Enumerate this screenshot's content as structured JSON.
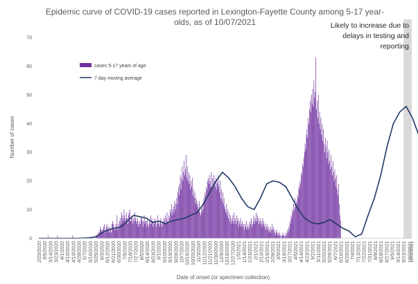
{
  "chart_data": {
    "type": "bar",
    "title_lines": [
      "Epidemic curve of COVID-19 cases reported in Lexington-Fayette County among 5-17 year-",
      "olds, as of 10/07/2021"
    ],
    "xlabel": "Date of onset (or specimen collection)",
    "ylabel": "Number of cases",
    "ylim": [
      0,
      70
    ],
    "yticks": [
      0,
      10,
      20,
      30,
      40,
      50,
      60,
      70
    ],
    "grid": false,
    "legend_position": "upper-left",
    "x_start": "2020-02-25",
    "x_end": "2021-10-05",
    "xtick_labels": [
      "2/25/2020",
      "3/5/2020",
      "3/14/2020",
      "3/23/2020",
      "4/1/2020",
      "4/10/2020",
      "4/19/2020",
      "4/28/2020",
      "5/7/2020",
      "5/16/2020",
      "5/25/2020",
      "6/3/2020",
      "6/12/2020",
      "6/21/2020",
      "6/30/2020",
      "7/9/2020",
      "7/18/2020",
      "7/27/2020",
      "8/5/2020",
      "8/14/2020",
      "8/23/2020",
      "9/1/2020",
      "9/10/2020",
      "9/19/2020",
      "9/28/2020",
      "10/7/2020",
      "10/16/2020",
      "10/25/2020",
      "11/3/2020",
      "11/12/2020",
      "11/21/2020",
      "11/30/2020",
      "12/9/2020",
      "12/18/2020",
      "12/27/2020",
      "1/5/2021",
      "1/14/2021",
      "1/23/2021",
      "2/1/2021",
      "2/10/2021",
      "2/19/2021",
      "2/28/2021",
      "3/9/2021",
      "3/18/2021",
      "3/27/2021",
      "4/5/2021",
      "4/14/2021",
      "4/23/2021",
      "5/2/2021",
      "5/11/2021",
      "5/20/2021",
      "5/29/2021",
      "6/7/2021",
      "6/16/2021",
      "6/25/2021",
      "7/4/2021",
      "7/13/2021",
      "7/22/2021",
      "7/31/2021",
      "8/9/2021",
      "8/18/2021",
      "8/27/2021",
      "9/5/2021",
      "9/14/2021",
      "9/23/2021",
      "10/2/2021",
      "10/5/2021"
    ],
    "shaded_region": {
      "start": "2021-09-23",
      "end": "2021-10-05",
      "color": "#d9d9d9"
    },
    "annotation": [
      "Likely to increase due to",
      "delays in testing and",
      "reporting"
    ],
    "series": [
      {
        "name": "cases 5-17 years of age",
        "kind": "bar",
        "color": "#7030a0",
        "values": [
          0,
          0,
          0,
          0,
          0,
          0,
          0,
          0,
          0,
          0,
          0,
          0,
          0,
          0,
          1,
          0,
          0,
          0,
          0,
          0,
          0,
          0,
          0,
          0,
          0,
          0,
          0,
          0,
          0,
          1,
          0,
          0,
          0,
          0,
          0,
          0,
          0,
          0,
          0,
          0,
          0,
          0,
          0,
          0,
          0,
          0,
          0,
          0,
          0,
          0,
          0,
          0,
          0,
          1,
          0,
          0,
          0,
          0,
          0,
          0,
          0,
          0,
          0,
          0,
          0,
          0,
          0,
          0,
          0,
          0,
          0,
          0,
          0,
          0,
          0,
          0,
          0,
          0,
          0,
          0,
          0,
          0,
          0,
          0,
          0,
          0,
          0,
          0,
          0,
          0,
          1,
          1,
          1,
          2,
          1,
          2,
          3,
          4,
          3,
          2,
          3,
          3,
          4,
          5,
          2,
          3,
          4,
          5,
          3,
          4,
          3,
          2,
          4,
          3,
          2,
          5,
          6,
          5,
          4,
          3,
          3,
          5,
          4,
          8,
          3,
          5,
          4,
          6,
          7,
          5,
          9,
          8,
          6,
          7,
          10,
          8,
          6,
          7,
          9,
          7,
          5,
          8,
          9,
          10,
          6,
          6,
          8,
          7,
          5,
          7,
          6,
          9,
          7,
          6,
          5,
          7,
          6,
          4,
          5,
          6,
          5,
          7,
          7,
          6,
          4,
          6,
          8,
          5,
          6,
          6,
          4,
          7,
          5,
          4,
          6,
          5,
          8,
          5,
          7,
          6,
          4,
          6,
          5,
          7,
          6,
          4,
          5,
          8,
          6,
          5,
          4,
          6,
          7,
          5,
          4,
          6,
          5,
          7,
          6,
          8,
          5,
          7,
          9,
          6,
          5,
          8,
          7,
          10,
          9,
          12,
          8,
          10,
          11,
          9,
          13,
          12,
          10,
          14,
          12,
          16,
          18,
          15,
          19,
          22,
          17,
          21,
          25,
          20,
          23,
          27,
          22,
          24,
          29,
          21,
          25,
          20,
          23,
          19,
          22,
          17,
          20,
          18,
          21,
          15,
          17,
          14,
          16,
          12,
          14,
          13,
          11,
          12,
          10,
          13,
          9,
          8,
          11,
          9,
          12,
          10,
          14,
          13,
          16,
          15,
          18,
          17,
          20,
          21,
          19,
          22,
          20,
          18,
          23,
          17,
          21,
          19,
          22,
          20,
          18,
          21,
          17,
          20,
          19,
          22,
          18,
          16,
          20,
          14,
          17,
          13,
          16,
          12,
          14,
          11,
          10,
          9,
          12,
          8,
          10,
          7,
          9,
          6,
          8,
          5,
          7,
          6,
          8,
          5,
          9,
          6,
          7,
          5,
          8,
          6,
          7,
          4,
          6,
          5,
          7,
          4,
          5,
          6,
          4,
          5,
          3,
          5,
          4,
          6,
          3,
          4,
          5,
          3,
          4,
          6,
          5,
          7,
          4,
          5,
          6,
          8,
          5,
          7,
          6,
          9,
          6,
          8,
          7,
          5,
          6,
          7,
          5,
          6,
          4,
          7,
          5,
          6,
          4,
          5,
          3,
          4,
          5,
          3,
          4,
          2,
          3,
          4,
          2,
          3,
          5,
          3,
          4,
          2,
          3,
          1,
          2,
          3,
          2,
          1,
          2,
          1,
          2,
          1,
          0,
          1,
          1,
          2,
          1,
          1,
          0,
          1,
          2,
          1,
          3,
          2,
          4,
          3,
          6,
          5,
          8,
          7,
          10,
          9,
          12,
          10,
          14,
          11,
          13,
          12,
          15,
          14,
          18,
          17,
          20,
          19,
          23,
          22,
          26,
          25,
          28,
          30,
          33,
          31,
          36,
          38,
          35,
          42,
          40,
          45,
          48,
          44,
          50,
          47,
          52,
          46,
          55,
          49,
          51,
          63,
          45,
          48,
          42,
          50,
          40,
          44,
          38,
          42,
          36,
          40,
          34,
          38,
          33,
          30,
          35,
          32,
          28,
          34,
          30,
          26,
          31,
          27,
          24,
          29,
          25,
          22,
          27,
          23,
          20,
          24,
          21,
          18,
          22,
          17,
          15,
          19,
          12,
          8,
          6
        ]
      },
      {
        "name": "7 day moving average",
        "kind": "line",
        "color": "#1f3864",
        "points": [
          [
            0,
            0
          ],
          [
            60,
            0
          ],
          [
            80,
            0.2
          ],
          [
            90,
            0.5
          ],
          [
            100,
            2
          ],
          [
            110,
            3
          ],
          [
            120,
            3.5
          ],
          [
            130,
            4
          ],
          [
            140,
            6
          ],
          [
            150,
            8
          ],
          [
            160,
            7.5
          ],
          [
            170,
            7
          ],
          [
            180,
            5.5
          ],
          [
            190,
            6
          ],
          [
            200,
            5
          ],
          [
            210,
            6
          ],
          [
            220,
            6.5
          ],
          [
            230,
            7
          ],
          [
            240,
            8
          ],
          [
            250,
            9
          ],
          [
            260,
            12
          ],
          [
            270,
            16
          ],
          [
            280,
            20
          ],
          [
            290,
            23
          ],
          [
            300,
            21
          ],
          [
            310,
            18
          ],
          [
            320,
            14
          ],
          [
            330,
            11
          ],
          [
            340,
            10
          ],
          [
            350,
            14
          ],
          [
            360,
            19
          ],
          [
            370,
            20
          ],
          [
            380,
            19.5
          ],
          [
            390,
            18
          ],
          [
            400,
            14
          ],
          [
            410,
            10
          ],
          [
            420,
            7
          ],
          [
            430,
            5.5
          ],
          [
            440,
            5
          ],
          [
            450,
            5.5
          ],
          [
            460,
            6.5
          ],
          [
            470,
            5
          ],
          [
            480,
            3.5
          ],
          [
            490,
            2.5
          ],
          [
            500,
            0.5
          ],
          [
            510,
            1.5
          ],
          [
            520,
            8
          ],
          [
            530,
            14
          ],
          [
            540,
            22
          ],
          [
            550,
            32
          ],
          [
            560,
            40
          ],
          [
            570,
            44
          ],
          [
            580,
            46
          ],
          [
            590,
            42
          ],
          [
            600,
            36
          ],
          [
            610,
            30
          ],
          [
            620,
            24
          ],
          [
            630,
            18
          ],
          [
            640,
            10
          ]
        ]
      }
    ]
  }
}
